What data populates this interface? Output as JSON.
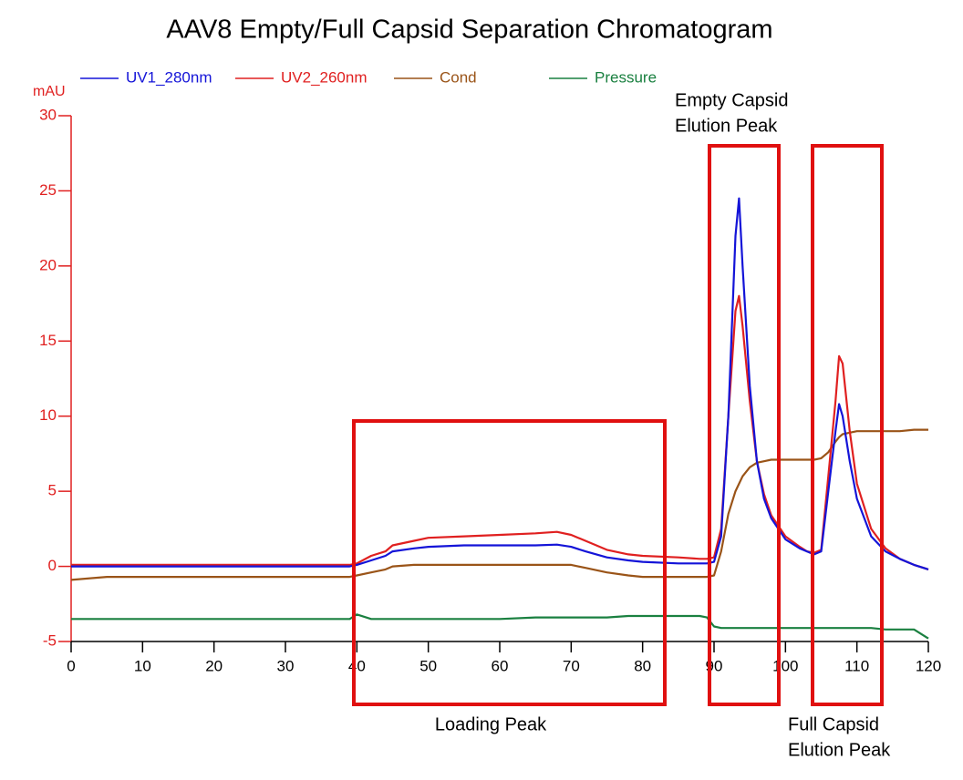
{
  "chart_data": {
    "type": "line",
    "title": "AAV8 Empty/Full Capsid Separation Chromatogram",
    "ylabel": "mAU",
    "x": [
      0,
      5,
      10,
      20,
      30,
      39,
      40,
      42,
      44,
      45,
      48,
      50,
      55,
      60,
      65,
      68,
      70,
      72,
      75,
      78,
      80,
      85,
      88,
      89,
      90,
      91,
      92,
      93,
      93.5,
      94,
      95,
      96,
      97,
      98,
      100,
      102,
      103,
      104,
      105,
      106,
      107,
      107.5,
      108,
      109,
      110,
      112,
      114,
      116,
      118,
      120
    ],
    "series": [
      {
        "name": "UV1_280nm",
        "color": "#1414d8",
        "values": [
          0,
          0,
          0,
          0,
          0,
          0,
          0.1,
          0.4,
          0.7,
          1.0,
          1.2,
          1.3,
          1.4,
          1.4,
          1.4,
          1.45,
          1.3,
          1.0,
          0.6,
          0.4,
          0.3,
          0.2,
          0.2,
          0.2,
          0.3,
          2.0,
          10,
          22,
          24.5,
          20,
          12,
          7,
          4.5,
          3.2,
          1.8,
          1.2,
          1.0,
          0.8,
          1.0,
          5,
          9,
          10.8,
          10,
          7,
          4.5,
          2,
          1,
          0.5,
          0.1,
          -0.2
        ]
      },
      {
        "name": "UV2_260nm",
        "color": "#e02020",
        "values": [
          0.1,
          0.1,
          0.1,
          0.1,
          0.1,
          0.1,
          0.2,
          0.7,
          1.0,
          1.4,
          1.7,
          1.9,
          2.0,
          2.1,
          2.2,
          2.3,
          2.1,
          1.7,
          1.1,
          0.8,
          0.7,
          0.6,
          0.5,
          0.5,
          0.6,
          2.5,
          10,
          17,
          18,
          16,
          11,
          7,
          4.8,
          3.4,
          2.0,
          1.3,
          1.0,
          0.9,
          1.1,
          6,
          11,
          14,
          13.5,
          9,
          5.5,
          2.5,
          1.2,
          0.5,
          0.1,
          -0.2
        ]
      },
      {
        "name": "Cond",
        "color": "#9a5418",
        "values": [
          -0.9,
          -0.7,
          -0.7,
          -0.7,
          -0.7,
          -0.7,
          -0.6,
          -0.4,
          -0.2,
          0,
          0.1,
          0.1,
          0.1,
          0.1,
          0.1,
          0.1,
          0.1,
          -0.1,
          -0.4,
          -0.6,
          -0.7,
          -0.7,
          -0.7,
          -0.7,
          -0.6,
          1.0,
          3.5,
          5.0,
          5.5,
          6.0,
          6.6,
          6.9,
          7.0,
          7.1,
          7.1,
          7.1,
          7.1,
          7.1,
          7.2,
          7.6,
          8.3,
          8.6,
          8.8,
          8.9,
          9.0,
          9.0,
          9.0,
          9.0,
          9.1,
          9.1
        ]
      },
      {
        "name": "Pressure",
        "color": "#1a8040",
        "values": [
          -3.5,
          -3.5,
          -3.5,
          -3.5,
          -3.5,
          -3.5,
          -3.2,
          -3.5,
          -3.5,
          -3.5,
          -3.5,
          -3.5,
          -3.5,
          -3.5,
          -3.4,
          -3.4,
          -3.4,
          -3.4,
          -3.4,
          -3.3,
          -3.3,
          -3.3,
          -3.3,
          -3.4,
          -4.0,
          -4.1,
          -4.1,
          -4.1,
          -4.1,
          -4.1,
          -4.1,
          -4.1,
          -4.1,
          -4.1,
          -4.1,
          -4.1,
          -4.1,
          -4.1,
          -4.1,
          -4.1,
          -4.1,
          -4.1,
          -4.1,
          -4.1,
          -4.1,
          -4.1,
          -4.2,
          -4.2,
          -4.2,
          -4.8
        ]
      }
    ],
    "xlim": [
      0,
      120
    ],
    "ylim": [
      -5,
      30
    ],
    "xticks": [
      0,
      10,
      20,
      30,
      40,
      50,
      60,
      70,
      80,
      90,
      100,
      110,
      120
    ],
    "yticks": [
      -5,
      0,
      5,
      10,
      15,
      20,
      25,
      30
    ],
    "annotations": [
      {
        "text": [
          "Empty Capsid",
          "Elution Peak"
        ]
      },
      {
        "text": [
          "Loading Peak"
        ]
      },
      {
        "text": [
          "Full Capsid",
          "Elution Peak"
        ]
      }
    ]
  }
}
